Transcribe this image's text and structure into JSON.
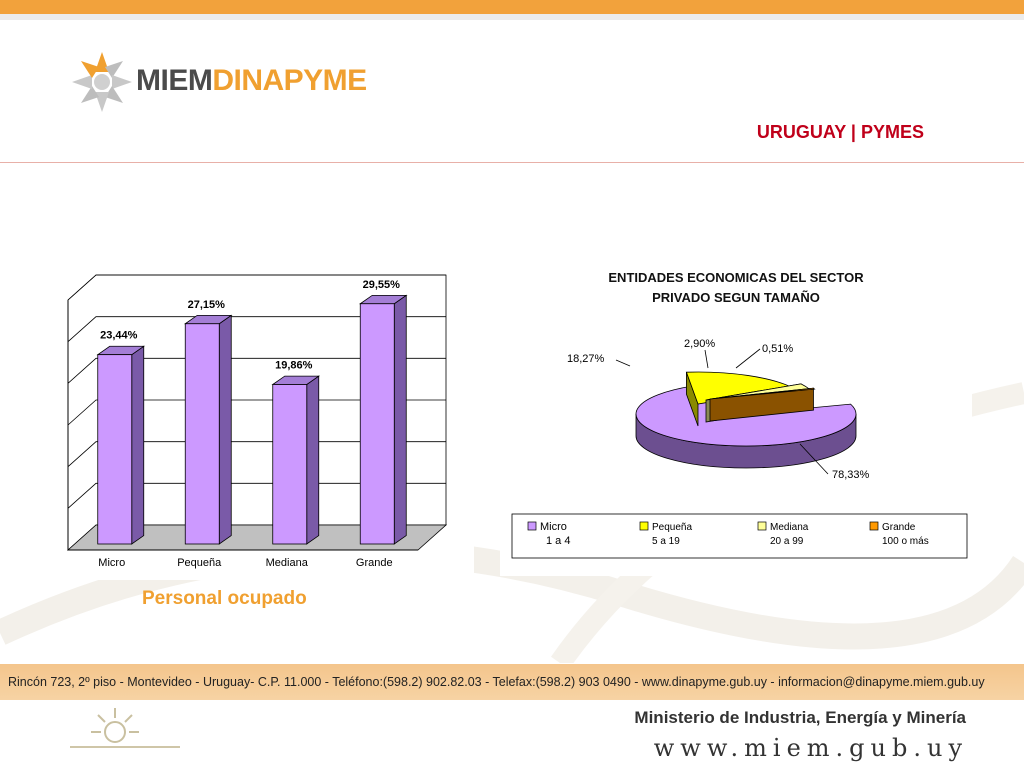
{
  "header": {
    "logo": {
      "part1": "MIEM",
      "part2": "DINAPYME"
    },
    "title": "URUGUAY | PYMES"
  },
  "colors": {
    "accent_orange": "#f0a030",
    "title_red": "#c0001a",
    "bar_fill": "#cc99ff",
    "bar_side": "#7a5aa8"
  },
  "chart_caption": "Personal ocupado",
  "chart_data": [
    {
      "type": "bar",
      "title": "",
      "categories": [
        "Micro",
        "Pequeña",
        "Mediana",
        "Grande"
      ],
      "values": [
        23.44,
        27.15,
        19.86,
        29.55
      ],
      "value_labels": [
        "23,44%",
        "27,15%",
        "19,86%",
        "29,55%"
      ],
      "ylim": [
        0,
        30
      ],
      "grid": true,
      "colors": {
        "face": "#cc99ff",
        "side": "#7a5aa8",
        "top": "#a47ed6"
      }
    },
    {
      "type": "pie",
      "title_lines": [
        "ENTIDADES ECONOMICAS DEL SECTOR",
        "PRIVADO SEGUN TAMAÑO"
      ],
      "slices": [
        {
          "name": "Micro",
          "range": "1 a 4",
          "value": 78.33,
          "label": "78,33%",
          "color": "#cc99ff",
          "dark": "#6c4f90"
        },
        {
          "name": "Pequeña",
          "range": "5 a 19",
          "value": 18.27,
          "label": "18,27%",
          "color": "#ffff00",
          "dark": "#8a8a00"
        },
        {
          "name": "Mediana",
          "range": "20 a 99",
          "value": 2.9,
          "label": "2,90%",
          "color": "#ffff99",
          "dark": "#8a8a55"
        },
        {
          "name": "Grande",
          "range": "100 o más",
          "value": 0.51,
          "label": "0,51%",
          "color": "#ff9900",
          "dark": "#8a5200"
        }
      ],
      "legend_position": "bottom"
    }
  ],
  "footer": {
    "address": "Rincón 723, 2º piso - Montevideo - Uruguay- C.P. 11.000 - Teléfono:(598.2) 902.82.03 - Telefax:(598.2) 903 0490 - www.dinapyme.gub.uy - informacion@dinapyme.miem.gub.uy",
    "ministry": "Ministerio de Industria, Energía y Minería",
    "website": "www.miem.gub.uy"
  }
}
